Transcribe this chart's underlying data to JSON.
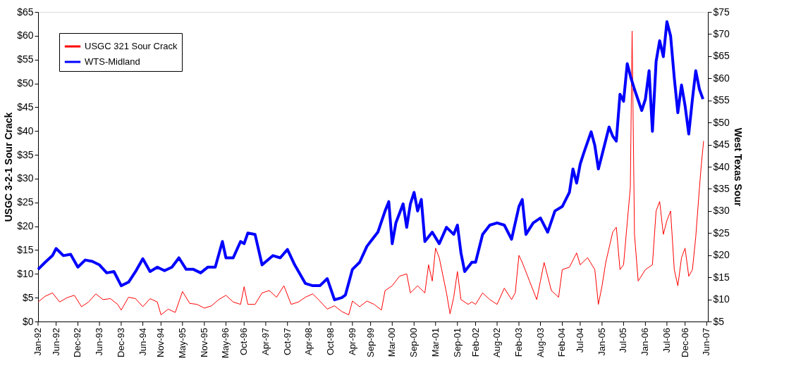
{
  "chart_data": {
    "type": "line",
    "ylabel": "USGC 3-2-1 Sour Crack",
    "y2label": "West Texas Sour",
    "xlim": [
      "1992-01-15",
      "2007-06-25"
    ],
    "xticks": [
      {
        "value": "1992-01-15",
        "label": "Jan-92"
      },
      {
        "value": "1992-06-15",
        "label": "Jun-92"
      },
      {
        "value": "1992-12-15",
        "label": "Dec-92"
      },
      {
        "value": "1993-06-15",
        "label": "Jun-93"
      },
      {
        "value": "1993-12-15",
        "label": "Dec-93"
      },
      {
        "value": "1994-06-15",
        "label": "Jun-94"
      },
      {
        "value": "1994-11-15",
        "label": "Nov-94"
      },
      {
        "value": "1995-05-15",
        "label": "May-95"
      },
      {
        "value": "1995-11-15",
        "label": "Nov-95"
      },
      {
        "value": "1996-05-15",
        "label": "May-96"
      },
      {
        "value": "1996-10-15",
        "label": "Oct-96"
      },
      {
        "value": "1997-04-15",
        "label": "Apr-97"
      },
      {
        "value": "1997-10-15",
        "label": "Oct-97"
      },
      {
        "value": "1998-04-15",
        "label": "Apr-98"
      },
      {
        "value": "1998-10-15",
        "label": "Oct-98"
      },
      {
        "value": "1999-04-15",
        "label": "Apr-99"
      },
      {
        "value": "1999-09-15",
        "label": "Sep-99"
      },
      {
        "value": "2000-03-15",
        "label": "Mar-00"
      },
      {
        "value": "2000-09-15",
        "label": "Sep-00"
      },
      {
        "value": "2001-03-15",
        "label": "Mar-01"
      },
      {
        "value": "2001-09-15",
        "label": "Sep-01"
      },
      {
        "value": "2002-02-15",
        "label": "Feb-02"
      },
      {
        "value": "2002-08-15",
        "label": "Aug-02"
      },
      {
        "value": "2003-02-15",
        "label": "Feb-03"
      },
      {
        "value": "2003-08-15",
        "label": "Aug-03"
      },
      {
        "value": "2004-02-15",
        "label": "Feb-04"
      },
      {
        "value": "2004-07-15",
        "label": "Jul-04"
      },
      {
        "value": "2005-01-15",
        "label": "Jan-05"
      },
      {
        "value": "2005-07-15",
        "label": "Jul-05"
      },
      {
        "value": "2006-01-15",
        "label": "Jan-06"
      },
      {
        "value": "2006-07-15",
        "label": "Jul-06"
      },
      {
        "value": "2006-12-15",
        "label": "Dec-06"
      },
      {
        "value": "2007-06-15",
        "label": "Jun-07"
      }
    ],
    "ylim": [
      0,
      65
    ],
    "yticks": [
      {
        "value": 0,
        "label": "$0"
      },
      {
        "value": 5,
        "label": "$5"
      },
      {
        "value": 10,
        "label": "$10"
      },
      {
        "value": 15,
        "label": "$15"
      },
      {
        "value": 20,
        "label": "$20"
      },
      {
        "value": 25,
        "label": "$25"
      },
      {
        "value": 30,
        "label": "$30"
      },
      {
        "value": 35,
        "label": "$35"
      },
      {
        "value": 40,
        "label": "$40"
      },
      {
        "value": 45,
        "label": "$45"
      },
      {
        "value": 50,
        "label": "$50"
      },
      {
        "value": 55,
        "label": "$55"
      },
      {
        "value": 60,
        "label": "$60"
      },
      {
        "value": 65,
        "label": "$65"
      }
    ],
    "y2lim": [
      5,
      75
    ],
    "y2ticks": [
      {
        "value": 5,
        "label": "$5"
      },
      {
        "value": 10,
        "label": "$10"
      },
      {
        "value": 15,
        "label": "$15"
      },
      {
        "value": 20,
        "label": "$20"
      },
      {
        "value": 25,
        "label": "$25"
      },
      {
        "value": 30,
        "label": "$30"
      },
      {
        "value": 35,
        "label": "$35"
      },
      {
        "value": 40,
        "label": "$40"
      },
      {
        "value": 45,
        "label": "$45"
      },
      {
        "value": 50,
        "label": "$50"
      },
      {
        "value": 55,
        "label": "$55"
      },
      {
        "value": 60,
        "label": "$60"
      },
      {
        "value": 65,
        "label": "$65"
      },
      {
        "value": 70,
        "label": "$70"
      },
      {
        "value": 75,
        "label": "$75"
      }
    ],
    "grid": false,
    "legend": "top left",
    "marker": "none",
    "line_style": "solid",
    "series": [
      {
        "name": "USGC 321 Sour Crack",
        "color": "#ff0000",
        "axis": "y",
        "x": [
          "1992-01-15",
          "1992-03-15",
          "1992-05-15",
          "1992-07-15",
          "1992-09-15",
          "1992-11-15",
          "1993-01-15",
          "1993-03-15",
          "1993-05-15",
          "1993-07-15",
          "1993-09-15",
          "1993-11-15",
          "1993-12-15",
          "1994-02-15",
          "1994-04-15",
          "1994-06-15",
          "1994-08-15",
          "1994-10-15",
          "1994-11-15",
          "1995-01-15",
          "1995-03-15",
          "1995-05-15",
          "1995-07-15",
          "1995-09-15",
          "1995-11-15",
          "1996-01-15",
          "1996-03-15",
          "1996-05-15",
          "1996-07-15",
          "1996-09-15",
          "1996-10-15",
          "1996-11-15",
          "1997-01-15",
          "1997-03-15",
          "1997-05-15",
          "1997-07-15",
          "1997-09-15",
          "1997-11-15",
          "1998-01-15",
          "1998-03-15",
          "1998-05-15",
          "1998-07-15",
          "1998-09-15",
          "1998-11-15",
          "1999-01-15",
          "1999-03-15",
          "1999-04-15",
          "1999-06-15",
          "1999-08-15",
          "1999-10-15",
          "1999-12-15",
          "2000-01-15",
          "2000-03-15",
          "2000-05-15",
          "2000-07-15",
          "2000-08-15",
          "2000-10-15",
          "2000-12-15",
          "2001-01-15",
          "2001-02-15",
          "2001-03-15",
          "2001-04-15",
          "2001-06-15",
          "2001-07-15",
          "2001-08-15",
          "2001-09-15",
          "2001-10-15",
          "2001-12-15",
          "2002-01-15",
          "2002-02-15",
          "2002-04-15",
          "2002-06-15",
          "2002-08-15",
          "2002-10-15",
          "2002-12-15",
          "2003-01-15",
          "2003-02-15",
          "2003-03-15",
          "2003-05-15",
          "2003-07-15",
          "2003-08-15",
          "2003-09-15",
          "2003-11-15",
          "2004-01-15",
          "2004-02-15",
          "2004-04-15",
          "2004-06-15",
          "2004-07-15",
          "2004-09-15",
          "2004-11-15",
          "2004-12-15",
          "2005-01-15",
          "2005-02-15",
          "2005-04-15",
          "2005-05-15",
          "2005-06-15",
          "2005-07-15",
          "2005-08-15",
          "2005-09-10",
          "2005-09-25",
          "2005-10-15",
          "2005-11-15",
          "2006-01-15",
          "2006-03-15",
          "2006-04-15",
          "2006-05-15",
          "2006-06-15",
          "2006-07-15",
          "2006-08-15",
          "2006-09-15",
          "2006-10-15",
          "2006-11-15",
          "2006-12-15",
          "2007-01-15",
          "2007-02-15",
          "2007-03-15",
          "2007-04-15",
          "2007-05-01",
          "2007-05-20"
        ],
        "values": [
          4.1,
          5.3,
          6,
          4.1,
          5,
          5.5,
          3.1,
          4.1,
          5.8,
          4.6,
          4.8,
          3.6,
          2.4,
          5.1,
          4.8,
          3.1,
          4.8,
          4.1,
          1.4,
          2.6,
          1.9,
          6.3,
          3.8,
          3.6,
          2.8,
          3.3,
          4.6,
          5.5,
          4.1,
          3.6,
          7.3,
          3.6,
          3.6,
          6,
          6.5,
          5.1,
          7.5,
          3.6,
          4.1,
          5.1,
          5.8,
          4.3,
          2.6,
          3.3,
          2.1,
          1.4,
          4.3,
          3.1,
          4.3,
          3.6,
          2.4,
          6.5,
          7.5,
          9.5,
          10,
          6,
          7.5,
          6,
          11.9,
          8.5,
          15.4,
          13.4,
          6,
          1.6,
          5.1,
          10.5,
          4.6,
          3.6,
          4.1,
          3.6,
          6,
          4.6,
          3.6,
          7,
          4.6,
          6,
          13.9,
          12.4,
          8.5,
          4.6,
          8.5,
          12.4,
          6.5,
          5.1,
          10.9,
          11.4,
          14.4,
          11.9,
          13.4,
          10.9,
          3.6,
          7.5,
          12.4,
          18.8,
          19.8,
          10.9,
          11.9,
          20.8,
          28.1,
          61,
          18.3,
          8.5,
          10.9,
          11.9,
          23.2,
          25.2,
          18.3,
          21.2,
          23.2,
          10.9,
          7.5,
          13.4,
          15.4,
          9.5,
          10.9,
          17.8,
          28.1,
          33,
          37.9
        ]
      },
      {
        "name": "WTS-Midland",
        "color": "#0000ff",
        "axis": "y2",
        "x": [
          "1992-01-15",
          "1992-03-15",
          "1992-05-15",
          "1992-06-15",
          "1992-08-15",
          "1992-10-15",
          "1992-12-15",
          "1993-02-15",
          "1993-04-15",
          "1993-06-15",
          "1993-08-15",
          "1993-10-15",
          "1993-12-15",
          "1994-02-15",
          "1994-04-15",
          "1994-06-15",
          "1994-08-15",
          "1994-10-15",
          "1994-12-15",
          "1995-02-15",
          "1995-04-15",
          "1995-06-15",
          "1995-08-15",
          "1995-10-15",
          "1995-12-15",
          "1996-02-15",
          "1996-04-15",
          "1996-05-15",
          "1996-07-15",
          "1996-09-15",
          "1996-10-15",
          "1996-11-15",
          "1997-01-15",
          "1997-03-15",
          "1997-06-15",
          "1997-08-15",
          "1997-10-15",
          "1997-12-15",
          "1998-03-15",
          "1998-05-15",
          "1998-07-15",
          "1998-09-15",
          "1998-11-15",
          "1999-01-15",
          "1999-02-15",
          "1999-04-15",
          "1999-06-15",
          "1999-08-15",
          "1999-09-15",
          "1999-11-15",
          "2000-01-15",
          "2000-02-15",
          "2000-03-15",
          "2000-04-15",
          "2000-06-15",
          "2000-07-15",
          "2000-08-15",
          "2000-09-15",
          "2000-10-15",
          "2000-11-15",
          "2000-12-15",
          "2001-02-15",
          "2001-04-15",
          "2001-06-15",
          "2001-08-15",
          "2001-09-15",
          "2001-10-15",
          "2001-11-15",
          "2002-01-15",
          "2002-02-15",
          "2002-04-15",
          "2002-06-15",
          "2002-08-15",
          "2002-10-15",
          "2002-12-15",
          "2003-02-15",
          "2003-03-15",
          "2003-04-15",
          "2003-06-15",
          "2003-08-15",
          "2003-10-15",
          "2003-12-15",
          "2004-02-15",
          "2004-04-15",
          "2004-05-15",
          "2004-06-15",
          "2004-07-15",
          "2004-08-15",
          "2004-10-15",
          "2004-11-15",
          "2004-12-15",
          "2005-01-15",
          "2005-03-15",
          "2005-04-15",
          "2005-05-15",
          "2005-06-15",
          "2005-07-15",
          "2005-08-15",
          "2005-09-15",
          "2005-10-15",
          "2005-12-15",
          "2006-01-15",
          "2006-02-15",
          "2006-03-15",
          "2006-04-15",
          "2006-05-15",
          "2006-06-15",
          "2006-07-15",
          "2006-08-15",
          "2006-09-15",
          "2006-10-15",
          "2006-11-15",
          "2006-12-15",
          "2007-01-15",
          "2007-02-15",
          "2007-03-15",
          "2007-04-15",
          "2007-05-15"
        ],
        "values": [
          16.8,
          18.4,
          19.9,
          21.5,
          19.9,
          20.2,
          17.3,
          18.9,
          18.6,
          17.8,
          16,
          16.3,
          13.1,
          13.9,
          16.3,
          19.2,
          16.3,
          17.3,
          16.5,
          17.3,
          19.4,
          16.8,
          16.8,
          16,
          17.3,
          17.3,
          23.1,
          19.4,
          19.4,
          23.1,
          22.6,
          25,
          24.7,
          17.8,
          19.9,
          19.4,
          21.3,
          17.8,
          13.6,
          13.1,
          13.1,
          14.7,
          9.9,
          10.4,
          11,
          16.8,
          18.4,
          22,
          23.1,
          25.2,
          30,
          32.1,
          22.6,
          27.3,
          31.6,
          26.3,
          31.6,
          34.2,
          30,
          32.6,
          23.1,
          25.2,
          22.6,
          26.3,
          24.7,
          26.8,
          20.5,
          16.3,
          18.4,
          18.4,
          24.7,
          26.8,
          27.3,
          26.8,
          23.6,
          31,
          32.6,
          24.7,
          27.3,
          28.4,
          25.2,
          30,
          31,
          34.2,
          39.5,
          36.3,
          40.6,
          43.2,
          47.9,
          44.8,
          39.5,
          42.7,
          49,
          46.9,
          45.8,
          56.4,
          54.8,
          63.3,
          60.1,
          57.5,
          52.7,
          55.3,
          61.7,
          48,
          63.8,
          68.5,
          64.9,
          72.8,
          69.6,
          60.1,
          52.2,
          58.5,
          53.8,
          47.4,
          55.3,
          61.7,
          57.5,
          55.3
        ]
      }
    ]
  }
}
